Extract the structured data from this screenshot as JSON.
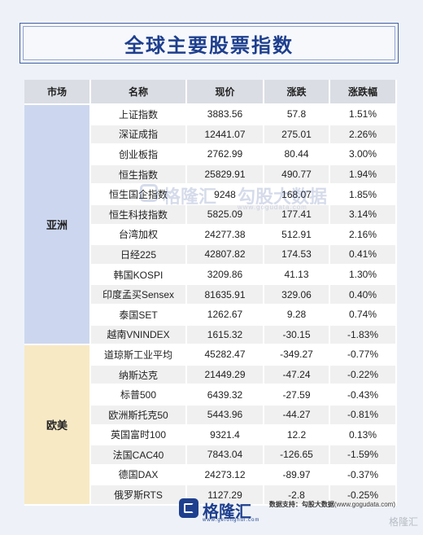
{
  "title": "全球主要股票指数",
  "headers": [
    "市场",
    "名称",
    "现价",
    "涨跌",
    "涨跌幅"
  ],
  "regions": {
    "asia": "亚洲",
    "europe_america": "欧美"
  },
  "asia_rows": [
    {
      "name": "上证指数",
      "price": "3883.56",
      "change": "57.8",
      "pct": "1.51%"
    },
    {
      "name": "深证成指",
      "price": "12441.07",
      "change": "275.01",
      "pct": "2.26%"
    },
    {
      "name": "创业板指",
      "price": "2762.99",
      "change": "80.44",
      "pct": "3.00%"
    },
    {
      "name": "恒生指数",
      "price": "25829.91",
      "change": "490.77",
      "pct": "1.94%"
    },
    {
      "name": "恒生国企指数",
      "price": "9248",
      "change": "168.07",
      "pct": "1.85%"
    },
    {
      "name": "恒生科技指数",
      "price": "5825.09",
      "change": "177.41",
      "pct": "3.14%"
    },
    {
      "name": "台湾加权",
      "price": "24277.38",
      "change": "512.91",
      "pct": "2.16%"
    },
    {
      "name": "日经225",
      "price": "42807.82",
      "change": "174.53",
      "pct": "0.41%"
    },
    {
      "name": "韩国KOSPI",
      "price": "3209.86",
      "change": "41.13",
      "pct": "1.30%"
    },
    {
      "name": "印度孟买Sensex",
      "price": "81635.91",
      "change": "329.06",
      "pct": "0.40%"
    },
    {
      "name": "泰国SET",
      "price": "1262.67",
      "change": "9.28",
      "pct": "0.74%"
    },
    {
      "name": "越南VNINDEX",
      "price": "1615.32",
      "change": "-30.15",
      "pct": "-1.83%"
    }
  ],
  "eu_rows": [
    {
      "name": "道琼斯工业平均",
      "price": "45282.47",
      "change": "-349.27",
      "pct": "-0.77%"
    },
    {
      "name": "纳斯达克",
      "price": "21449.29",
      "change": "-47.24",
      "pct": "-0.22%"
    },
    {
      "name": "标普500",
      "price": "6439.32",
      "change": "-27.59",
      "pct": "-0.43%"
    },
    {
      "name": "欧洲斯托克50",
      "price": "5443.96",
      "change": "-44.27",
      "pct": "-0.81%"
    },
    {
      "name": "英国富时100",
      "price": "9321.4",
      "change": "12.2",
      "pct": "0.13%"
    },
    {
      "name": "法国CAC40",
      "price": "7843.04",
      "change": "-126.65",
      "pct": "-1.59%"
    },
    {
      "name": "德国DAX",
      "price": "24273.12",
      "change": "-89.97",
      "pct": "-0.37%"
    },
    {
      "name": "俄罗斯RTS",
      "price": "1127.29",
      "change": "-2.8",
      "pct": "-0.25%"
    }
  ],
  "colors": {
    "up": "#c41d1d",
    "down": "#1c8a1c",
    "brand": "#1e3f8e"
  },
  "watermark": {
    "text1": "格隆汇",
    "text2": "勾股大数据",
    "url": "www.gogudata.com"
  },
  "footer": {
    "logo_text": "格隆汇",
    "logo_url": "www.gelonghui.com",
    "source_label": "数据支持：",
    "source_name": "勾股大数据",
    "source_url": "(www.gogudata.com)",
    "corner_watermark": "格隆汇"
  }
}
